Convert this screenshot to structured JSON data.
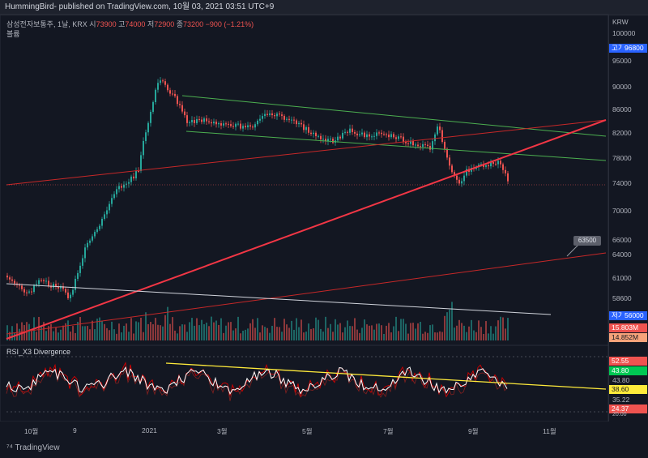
{
  "header": {
    "publisher": "HummingBird- published on TradingView.com, 10월 03, 2021 03:51 UTC+9"
  },
  "legend": {
    "symbol": "삼성전자보통주, 1날, KRX",
    "o_label": "시",
    "o_val": "73900",
    "h_label": "고",
    "h_val": "74000",
    "l_label": "저",
    "l_val": "72900",
    "c_label": "종",
    "c_val": "73200",
    "change": "−900 (−1.21%)",
    "volume_label": "볼륨"
  },
  "price_axis": {
    "currency": "KRW",
    "ticks": [
      "100000",
      "95000",
      "90000",
      "86000",
      "82000",
      "78000",
      "74000",
      "70000",
      "66000",
      "64000",
      "61000",
      "58600",
      "56000"
    ],
    "high_label": "고가",
    "high_value": "96800",
    "low_label": "저가",
    "low_value": "56000",
    "vol1": "15.803M",
    "vol2": "14.852M"
  },
  "callout": "63500",
  "rsi": {
    "title": "RSI_X3 Divergence",
    "values": [
      "52.55",
      "43.80",
      "43.80",
      "38.60",
      "35.22",
      "24.37"
    ],
    "bottom_tick": "20.00"
  },
  "time_axis": {
    "labels": [
      "10월",
      "9",
      "2021",
      "3월",
      "5월",
      "7월",
      "9월",
      "11월"
    ]
  },
  "footer": {
    "brand": "TradingView"
  },
  "colors": {
    "bg": "#131722",
    "up": "#26a69a",
    "down": "#ef5350",
    "channel": "#4caf50",
    "trend": "#f23645",
    "yellow": "#ffeb3b"
  }
}
